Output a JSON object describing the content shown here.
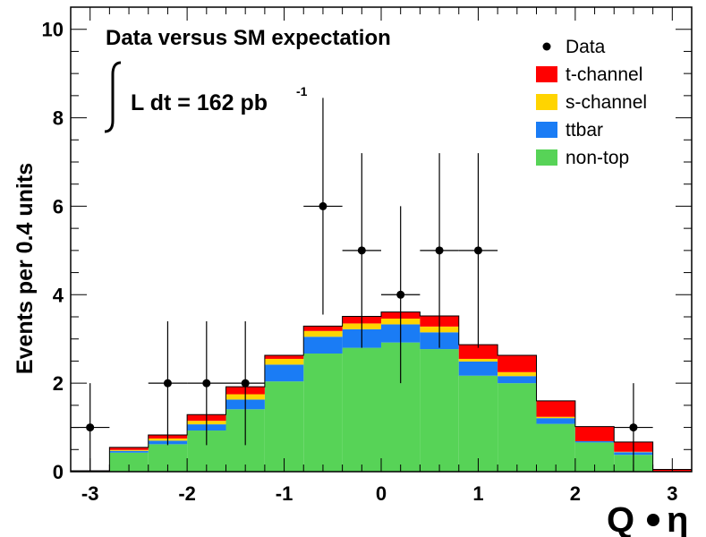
{
  "chart_data": {
    "type": "bar",
    "subtype": "stacked-histogram-with-data-points",
    "title": "Data versus SM expectation",
    "luminosity": {
      "prefix": "L dt = 162 pb",
      "exponent": "-1"
    },
    "xlabel": "Q",
    "xlabel_symbol": "η",
    "ylabel": "Events per 0.4 units",
    "xlim": [
      -3.2,
      3.2
    ],
    "ylim": [
      0,
      10.5
    ],
    "xticks": [
      -3,
      -2,
      -1,
      0,
      1,
      2,
      3
    ],
    "xtick_labels": [
      "-3",
      "-2",
      "-1",
      "0",
      "1",
      "2",
      "3"
    ],
    "yticks": [
      0,
      2,
      4,
      6,
      8,
      10
    ],
    "ytick_labels": [
      "0",
      "2",
      "4",
      "6",
      "8",
      "10"
    ],
    "bin_edges": [
      -3.2,
      -2.8,
      -2.4,
      -2.0,
      -1.6,
      -1.2,
      -0.8,
      -0.4,
      0.0,
      0.4,
      0.8,
      1.2,
      1.6,
      2.0,
      2.4,
      2.8,
      3.2
    ],
    "series": [
      {
        "name": "non-top",
        "color": "#57d357",
        "values": [
          0.02,
          0.43,
          0.62,
          0.93,
          1.41,
          2.04,
          2.67,
          2.8,
          2.92,
          2.77,
          2.17,
          2.0,
          1.08,
          0.66,
          0.38,
          0.0
        ]
      },
      {
        "name": "ttbar",
        "color": "#1a7cf5",
        "values": [
          0.0,
          0.04,
          0.08,
          0.14,
          0.22,
          0.38,
          0.38,
          0.42,
          0.41,
          0.38,
          0.32,
          0.16,
          0.13,
          0.03,
          0.06,
          0.0
        ]
      },
      {
        "name": "s-channel",
        "color": "#ffd400",
        "values": [
          0.0,
          0.02,
          0.05,
          0.08,
          0.12,
          0.13,
          0.13,
          0.13,
          0.13,
          0.13,
          0.06,
          0.09,
          0.03,
          0.0,
          0.01,
          0.0
        ]
      },
      {
        "name": "t-channel",
        "color": "#ff0000",
        "values": [
          0.0,
          0.06,
          0.08,
          0.14,
          0.17,
          0.08,
          0.11,
          0.16,
          0.15,
          0.24,
          0.32,
          0.38,
          0.36,
          0.33,
          0.22,
          0.05
        ]
      }
    ],
    "data_points": {
      "name": "Data",
      "x": [
        -3.0,
        -2.2,
        -1.8,
        -1.4,
        -0.6,
        -0.2,
        0.2,
        0.6,
        1.0,
        2.6
      ],
      "y": [
        1,
        2,
        2,
        2,
        6,
        5,
        4,
        5,
        5,
        1
      ],
      "y_err_low": [
        1.0,
        1.4,
        1.4,
        1.4,
        2.45,
        2.2,
        2.0,
        2.2,
        2.2,
        1.0
      ],
      "y_err_high": [
        1.0,
        1.4,
        1.4,
        1.4,
        2.45,
        2.2,
        2.0,
        2.2,
        2.2,
        1.0
      ],
      "x_err": 0.2
    },
    "legend": {
      "position": "top-right",
      "entries": [
        {
          "label": "Data",
          "kind": "marker",
          "color": "#000000"
        },
        {
          "label": "t-channel",
          "kind": "box",
          "color": "#ff0000"
        },
        {
          "label": "s-channel",
          "kind": "box",
          "color": "#ffd400"
        },
        {
          "label": "ttbar",
          "kind": "box",
          "color": "#1a7cf5"
        },
        {
          "label": "non-top",
          "kind": "box",
          "color": "#57d357"
        }
      ]
    }
  }
}
